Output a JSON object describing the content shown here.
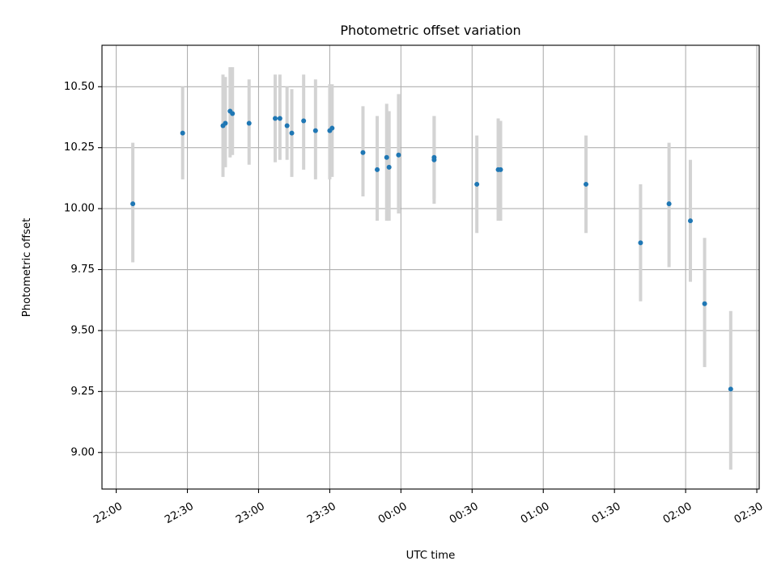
{
  "chart_data": {
    "type": "scatter",
    "title": "Photometric offset variation",
    "xlabel": "UTC time",
    "ylabel": "Photometric offset",
    "grid": true,
    "xlim": [
      "21:54",
      "02:31"
    ],
    "ylim": [
      8.85,
      10.67
    ],
    "x_ticks": [
      "22:00",
      "22:30",
      "23:00",
      "23:30",
      "00:00",
      "00:30",
      "01:00",
      "01:30",
      "02:00",
      "02:30"
    ],
    "y_ticks": [
      "9.00",
      "9.25",
      "9.50",
      "9.75",
      "10.00",
      "10.25",
      "10.50"
    ],
    "series": [
      {
        "marker_color": "#1f77b4",
        "errorbar_color": "#d3d3d3",
        "points": [
          {
            "x": "22:07",
            "y": 10.02,
            "low": 9.78,
            "high": 10.27
          },
          {
            "x": "22:28",
            "y": 10.31,
            "low": 10.12,
            "high": 10.5
          },
          {
            "x": "22:45",
            "y": 10.34,
            "low": 10.13,
            "high": 10.55
          },
          {
            "x": "22:46",
            "y": 10.35,
            "low": 10.17,
            "high": 10.54
          },
          {
            "x": "22:48",
            "y": 10.4,
            "low": 10.21,
            "high": 10.58
          },
          {
            "x": "22:49",
            "y": 10.39,
            "low": 10.22,
            "high": 10.58
          },
          {
            "x": "22:56",
            "y": 10.35,
            "low": 10.18,
            "high": 10.53
          },
          {
            "x": "23:07",
            "y": 10.37,
            "low": 10.19,
            "high": 10.55
          },
          {
            "x": "23:09",
            "y": 10.37,
            "low": 10.2,
            "high": 10.55
          },
          {
            "x": "23:12",
            "y": 10.34,
            "low": 10.2,
            "high": 10.5
          },
          {
            "x": "23:14",
            "y": 10.31,
            "low": 10.13,
            "high": 10.49
          },
          {
            "x": "23:19",
            "y": 10.36,
            "low": 10.16,
            "high": 10.55
          },
          {
            "x": "23:24",
            "y": 10.32,
            "low": 10.12,
            "high": 10.53
          },
          {
            "x": "23:30",
            "y": 10.32,
            "low": 10.12,
            "high": 10.51
          },
          {
            "x": "23:31",
            "y": 10.33,
            "low": 10.13,
            "high": 10.51
          },
          {
            "x": "23:44",
            "y": 10.23,
            "low": 10.05,
            "high": 10.42
          },
          {
            "x": "23:50",
            "y": 10.16,
            "low": 9.95,
            "high": 10.38
          },
          {
            "x": "23:54",
            "y": 10.21,
            "low": 9.95,
            "high": 10.43
          },
          {
            "x": "23:55",
            "y": 10.17,
            "low": 9.95,
            "high": 10.4
          },
          {
            "x": "23:59",
            "y": 10.22,
            "low": 9.98,
            "high": 10.47
          },
          {
            "x": "00:14",
            "y": 10.2,
            "low": 10.02,
            "high": 10.38
          },
          {
            "x": "00:14",
            "y": 10.21,
            "low": 10.04,
            "high": 10.38
          },
          {
            "x": "00:32",
            "y": 10.1,
            "low": 9.9,
            "high": 10.3
          },
          {
            "x": "00:41",
            "y": 10.16,
            "low": 9.95,
            "high": 10.37
          },
          {
            "x": "00:42",
            "y": 10.16,
            "low": 9.95,
            "high": 10.36
          },
          {
            "x": "01:18",
            "y": 10.1,
            "low": 9.9,
            "high": 10.3
          },
          {
            "x": "01:41",
            "y": 9.86,
            "low": 9.62,
            "high": 10.1
          },
          {
            "x": "01:53",
            "y": 10.02,
            "low": 9.76,
            "high": 10.27
          },
          {
            "x": "02:02",
            "y": 9.95,
            "low": 9.7,
            "high": 10.2
          },
          {
            "x": "02:08",
            "y": 9.61,
            "low": 9.35,
            "high": 9.88
          },
          {
            "x": "02:19",
            "y": 9.26,
            "low": 8.93,
            "high": 9.58
          }
        ]
      }
    ]
  }
}
